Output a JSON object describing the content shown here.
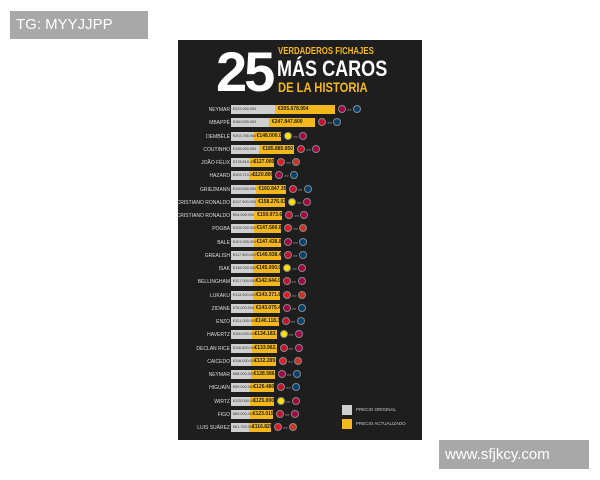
{
  "watermarks": {
    "top_left": "TG: MYYJJPP",
    "bottom_right": "www.sfjkcy.com"
  },
  "title": {
    "number": "25",
    "line1": "VERDADEROS FICHAJES",
    "line2": "MÁS CAROS",
    "line3": "DE LA HISTORIA"
  },
  "colors": {
    "background": "#1e1e1e",
    "accent": "#f5b81c",
    "original": "#cfcfcf"
  },
  "legend": {
    "original": "PRECIO ORIGINAL",
    "updated": "PRECIO ACTUALIZADO"
  },
  "chart_data": {
    "type": "bar",
    "series": [
      {
        "name": "PRECIO ORIGINAL"
      },
      {
        "name": "PRECIO ACTUALIZADO"
      }
    ],
    "rows": [
      {
        "player": "NEYMAR",
        "original": "€222.000.000",
        "updated": "€305.678.954",
        "updated_m": 305.7
      },
      {
        "player": "MBAPPÉ",
        "original": "€180.000.000",
        "updated": "€247.847.800",
        "updated_m": 247.8
      },
      {
        "player": "DEMBÉLÉ",
        "original": "€203.785.960",
        "updated": "€148.000.000",
        "updated_m": 148.0
      },
      {
        "player": "COUTINHO",
        "original": "€135.000.000",
        "updated": "€185.885.850",
        "updated_m": 185.9
      },
      {
        "player": "JOÃO FÉLIX",
        "original": "€178.818.407",
        "updated": "€127.000.000",
        "updated_m": 127.0
      },
      {
        "player": "HAZARD",
        "original": "€103.710.302",
        "updated": "€120.800.000",
        "updated_m": 120.8
      },
      {
        "player": "GRIEZMANN",
        "original": "€120.000.000",
        "updated": "€160.847.359",
        "updated_m": 160.8
      },
      {
        "player": "CRISTIANO RONALDO",
        "original": "€117.000.000",
        "updated": "€158.276.037",
        "updated_m": 158.3
      },
      {
        "player": "CRISTIANO RONALDO",
        "original": "€94.000.000",
        "updated": "€150.973.648",
        "updated_m": 151.0
      },
      {
        "player": "POGBA",
        "original": "€105.000.000",
        "updated": "€147.560.680",
        "updated_m": 147.6
      },
      {
        "player": "BALE",
        "original": "€101.000.000",
        "updated": "€147.438.820",
        "updated_m": 147.4
      },
      {
        "player": "GREALISH",
        "original": "€117.500.000",
        "updated": "€146.938.445",
        "updated_m": 146.9
      },
      {
        "player": "ISAK",
        "original": "€145.000.000",
        "updated": "€145.000.000",
        "updated_m": 145.0
      },
      {
        "player": "BELLINGHAM",
        "original": "€127.000.000",
        "updated": "€142.644.035",
        "updated_m": 142.6
      },
      {
        "player": "LUKAKU",
        "original": "€113.000.000",
        "updated": "€143.371.615",
        "updated_m": 143.4
      },
      {
        "player": "ZIDANE",
        "original": "€75.000.000",
        "updated": "€143.075.409",
        "updated_m": 143.1
      },
      {
        "player": "ENZO",
        "original": "€121.000.000",
        "updated": "€140.118.380",
        "updated_m": 140.1
      },
      {
        "player": "HAVERTZ",
        "original": "€100.000.000",
        "updated": "€134.183.082",
        "updated_m": 134.2
      },
      {
        "player": "DECLAN RICE",
        "original": "€116.600.000",
        "updated": "€133.962.349",
        "updated_m": 134.0
      },
      {
        "player": "CAICEDO",
        "original": "€116.000.000",
        "updated": "€132.289.548",
        "updated_m": 132.3
      },
      {
        "player": "NEYMAR",
        "original": "€88.000.000",
        "updated": "€128.586.454",
        "updated_m": 128.6
      },
      {
        "player": "HIGUAÍN",
        "original": "€90.000.000",
        "updated": "€126.480.533",
        "updated_m": 126.5
      },
      {
        "player": "WIRTZ",
        "original": "€125.000.000",
        "updated": "€125.000.000",
        "updated_m": 125.0
      },
      {
        "player": "FIGO",
        "original": "€60.000.000",
        "updated": "€123.015.067",
        "updated_m": 123.0
      },
      {
        "player": "LUIS SUÁREZ",
        "original": "€81.700.000",
        "updated": "€116.829.353",
        "updated_m": 116.8
      }
    ]
  }
}
